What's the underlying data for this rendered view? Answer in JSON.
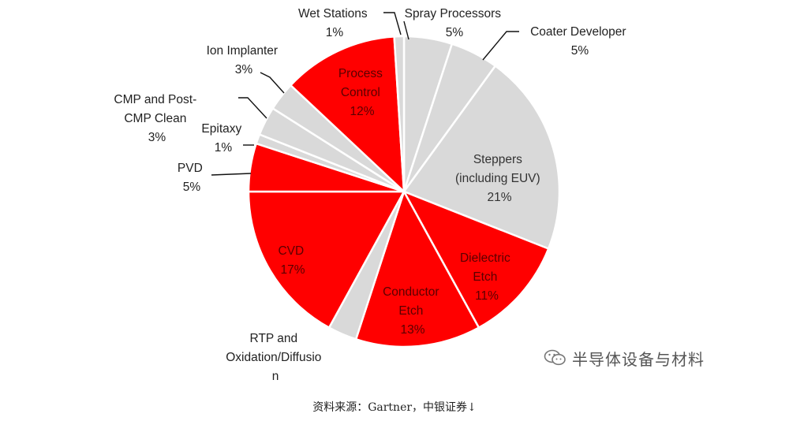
{
  "chart_data": {
    "type": "pie",
    "title": "",
    "slices": [
      {
        "label": "Spray Processors",
        "value": 5,
        "value_label": "5%",
        "color": "#d9d9d9"
      },
      {
        "label": "Coater Developer",
        "value": 5,
        "value_label": "5%",
        "color": "#d9d9d9"
      },
      {
        "label": "Steppers (including EUV)",
        "value": 21,
        "value_label": "21%",
        "color": "#d9d9d9"
      },
      {
        "label": "Dielectric Etch",
        "value": 11,
        "value_label": "11%",
        "color": "#ff0000"
      },
      {
        "label": "Conductor Etch",
        "value": 13,
        "value_label": "13%",
        "color": "#ff0000"
      },
      {
        "label": "RTP and Oxidation/Diffusion",
        "value": 3,
        "value_label": "",
        "color": "#d9d9d9"
      },
      {
        "label": "CVD",
        "value": 17,
        "value_label": "17%",
        "color": "#ff0000"
      },
      {
        "label": "PVD",
        "value": 5,
        "value_label": "5%",
        "color": "#ff0000"
      },
      {
        "label": "Epitaxy",
        "value": 1,
        "value_label": "1%",
        "color": "#d9d9d9"
      },
      {
        "label": "CMP and Post-CMP Clean",
        "value": 3,
        "value_label": "3%",
        "color": "#d9d9d9"
      },
      {
        "label": "Ion Implanter",
        "value": 3,
        "value_label": "3%",
        "color": "#d9d9d9"
      },
      {
        "label": "Process Control",
        "value": 12,
        "value_label": "12%",
        "color": "#ff0000"
      },
      {
        "label": "Wet Stations",
        "value": 1,
        "value_label": "1%",
        "color": "#d9d9d9"
      }
    ],
    "text_labels": {
      "wet_stations": [
        "Wet Stations",
        "1%"
      ],
      "spray_processors": [
        "Spray Processors",
        "5%"
      ],
      "coater_developer": [
        "Coater Developer",
        "5%"
      ],
      "ion_implanter": [
        "Ion Implanter",
        "3%"
      ],
      "cmp": [
        "CMP and Post-",
        "CMP Clean",
        "3%"
      ],
      "epitaxy": [
        "Epitaxy",
        "1%"
      ],
      "pvd": [
        "PVD",
        "5%"
      ],
      "process_control": [
        "Process",
        "Control",
        "12%"
      ],
      "steppers": [
        "Steppers",
        "(including EUV)",
        "21%"
      ],
      "dielectric_etch": [
        "Dielectric",
        "Etch",
        "11%"
      ],
      "conductor_etch": [
        "Conductor",
        "Etch",
        "13%"
      ],
      "cvd": [
        "CVD",
        "17%"
      ],
      "rtp": [
        "RTP and",
        "Oxidation/Diffusio",
        "n"
      ]
    }
  },
  "watermark": {
    "text": "半导体设备与材料",
    "icon": "wechat-icon"
  },
  "source_note": "资料来源：Gartner，中银证券↓"
}
